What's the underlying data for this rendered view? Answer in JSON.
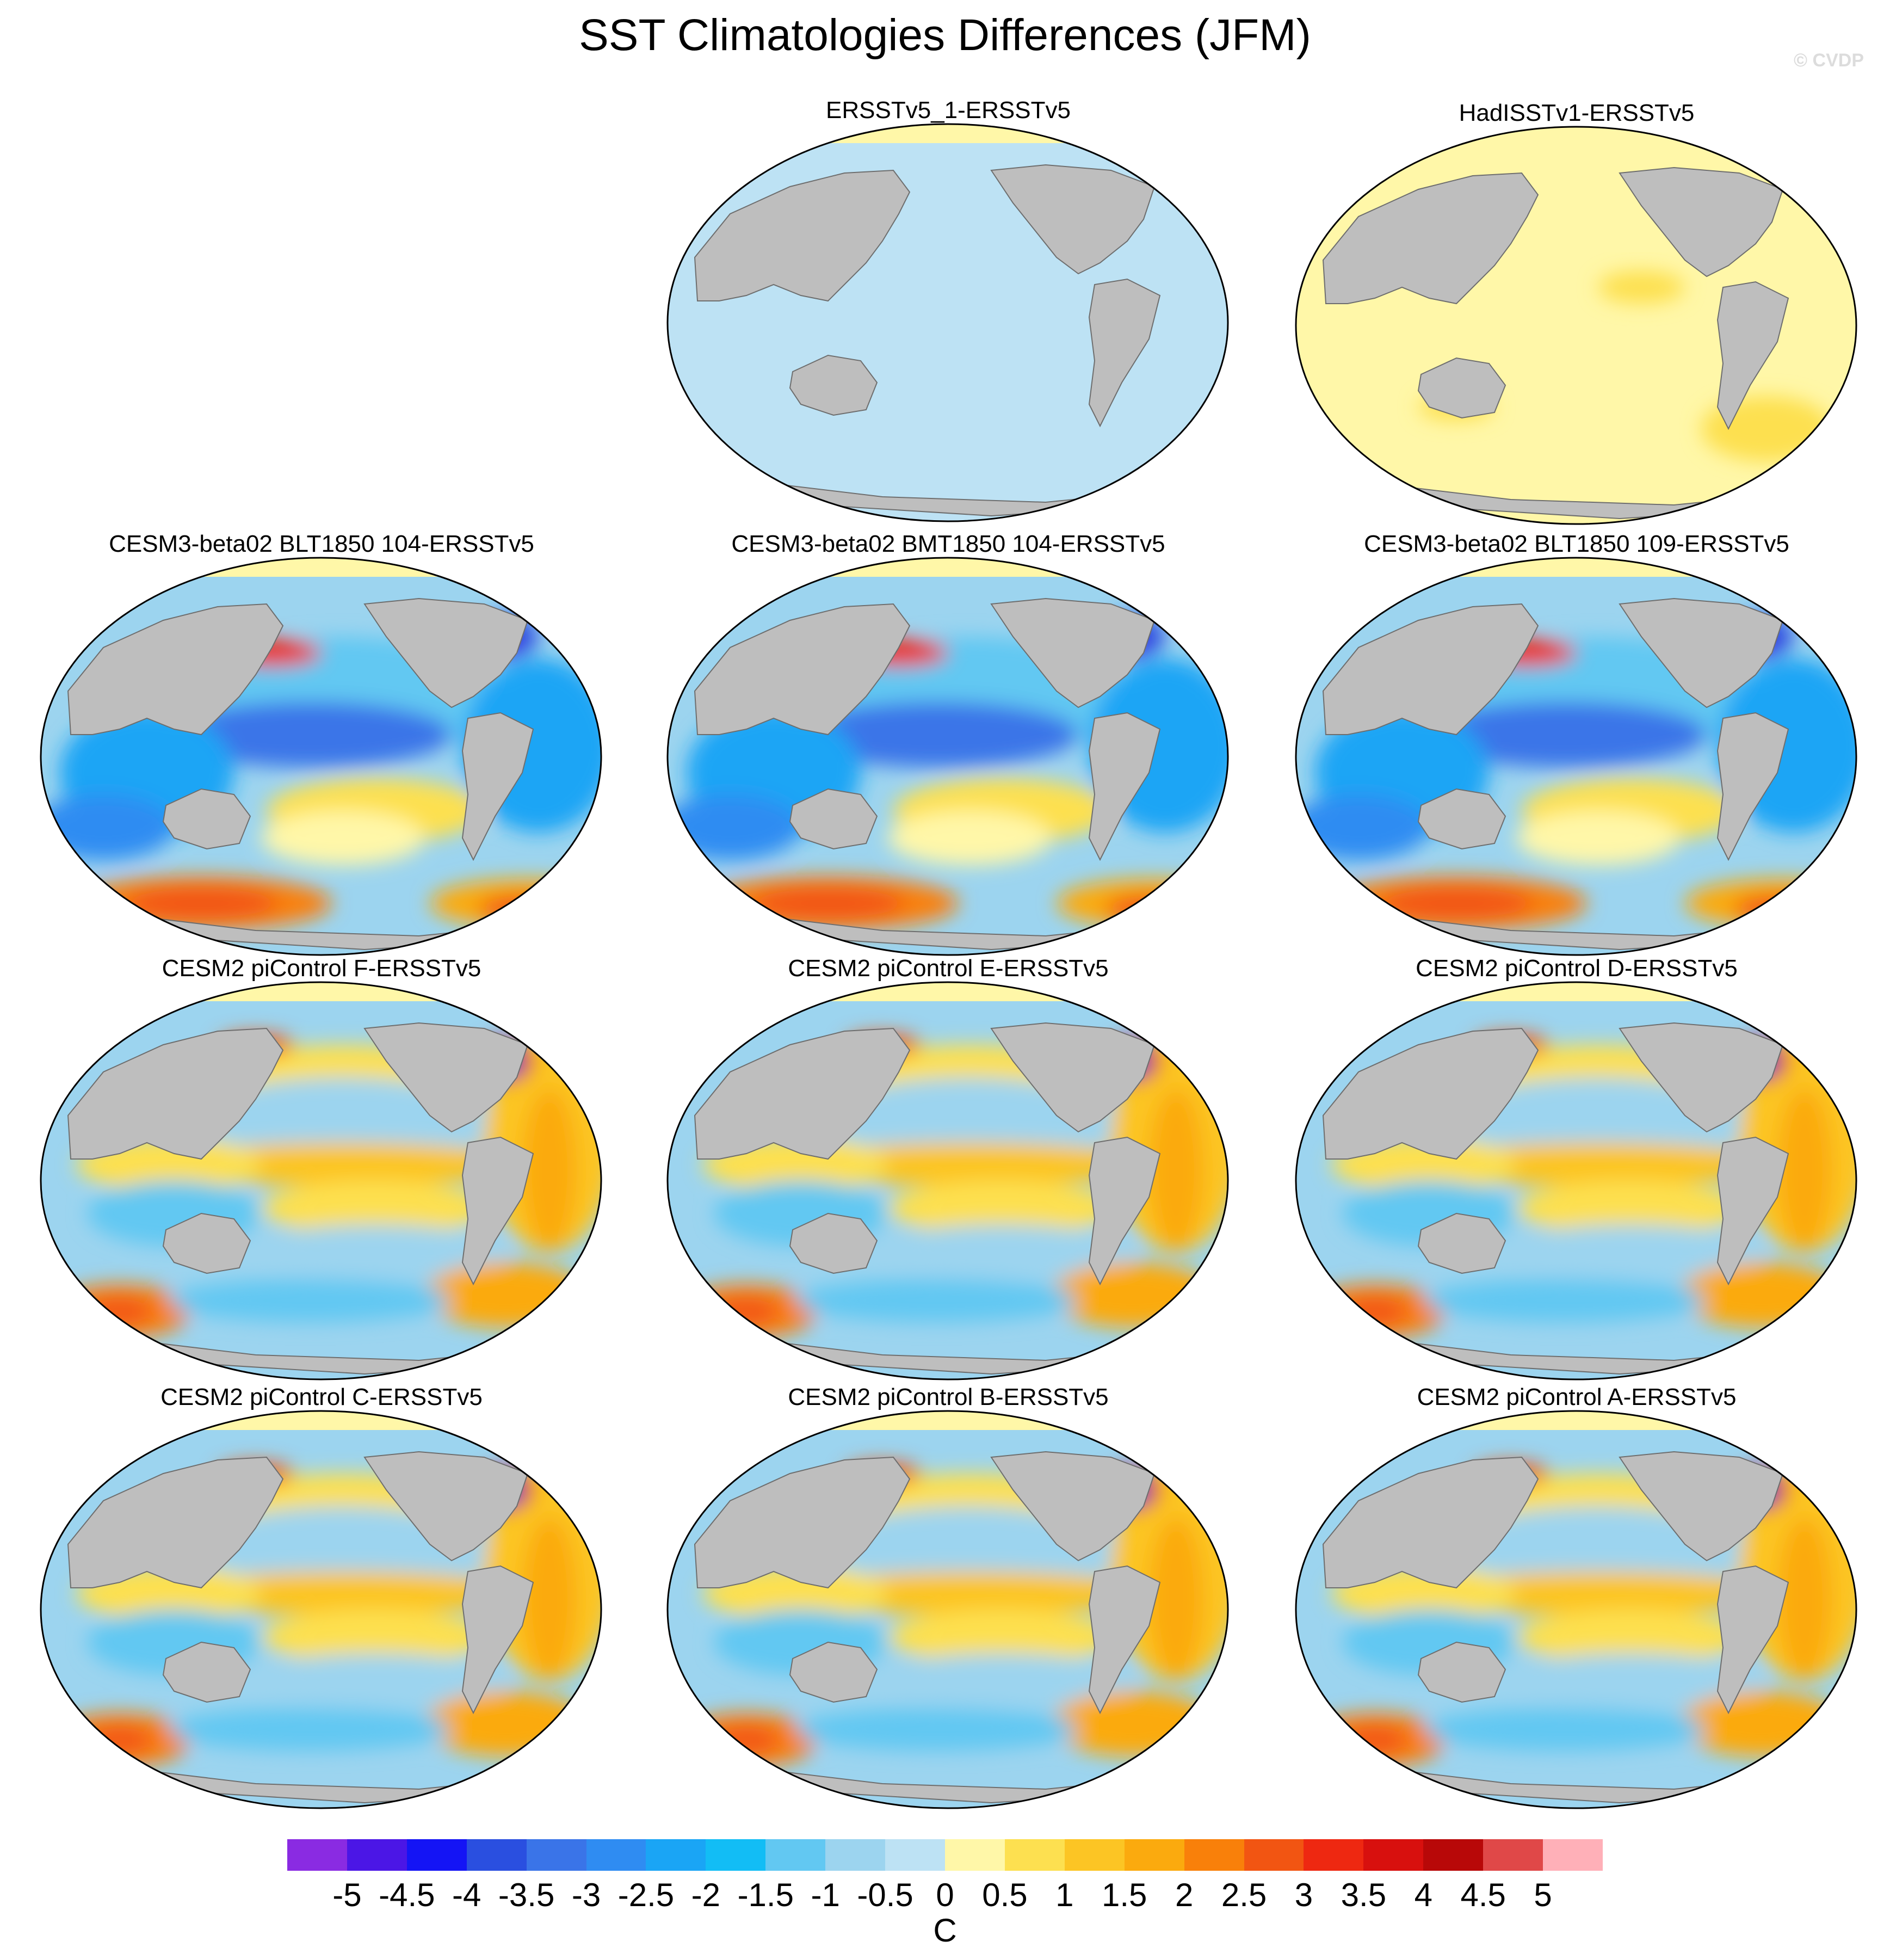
{
  "figure": {
    "title": "SST Climatologies Differences (JFM)",
    "credit": "© CVDP"
  },
  "panels": [
    {
      "title": "ERSSTv5_1-ERSSTv5",
      "pattern": "uniform-neg"
    },
    {
      "title": "HadISSTv1-ERSSTv5",
      "pattern": "uniform-pos"
    },
    {
      "title": "CESM3-beta02 BLT1850 104-ERSSTv5",
      "pattern": "cesm3"
    },
    {
      "title": "CESM3-beta02 BMT1850 104-ERSSTv5",
      "pattern": "cesm3"
    },
    {
      "title": "CESM3-beta02 BLT1850 109-ERSSTv5",
      "pattern": "cesm3"
    },
    {
      "title": "CESM2 piControl F-ERSSTv5",
      "pattern": "cesm2"
    },
    {
      "title": "CESM2 piControl E-ERSSTv5",
      "pattern": "cesm2"
    },
    {
      "title": "CESM2 piControl D-ERSSTv5",
      "pattern": "cesm2"
    },
    {
      "title": "CESM2 piControl C-ERSSTv5",
      "pattern": "cesm2"
    },
    {
      "title": "CESM2 piControl B-ERSSTv5",
      "pattern": "cesm2"
    },
    {
      "title": "CESM2 piControl A-ERSSTv5",
      "pattern": "cesm2"
    }
  ],
  "colorbar": {
    "units": "C",
    "tick_labels": [
      "-5",
      "-4.5",
      "-4",
      "-3.5",
      "-3",
      "-2.5",
      "-2",
      "-1.5",
      "-1",
      "-0.5",
      "0",
      "0.5",
      "1",
      "1.5",
      "2",
      "2.5",
      "3",
      "3.5",
      "4",
      "4.5",
      "5"
    ],
    "colors": [
      "#8a2be2",
      "#4b16e6",
      "#1414f5",
      "#2a4fe0",
      "#3a74e8",
      "#2f8cf2",
      "#1aa5f5",
      "#12bdf5",
      "#62c8f2",
      "#9cd4ef",
      "#bde2f4",
      "#fff7a8",
      "#fde050",
      "#fcc524",
      "#fbaa0e",
      "#f9800a",
      "#f25512",
      "#ee2811",
      "#d8100e",
      "#b80808",
      "#e04848",
      "#ffb0b8"
    ]
  },
  "colors": {
    "land": "#bebebe",
    "coast": "#6e6e6e",
    "ocean_neg": "#bde2f4",
    "ocean_pos": "#fff7a8"
  }
}
